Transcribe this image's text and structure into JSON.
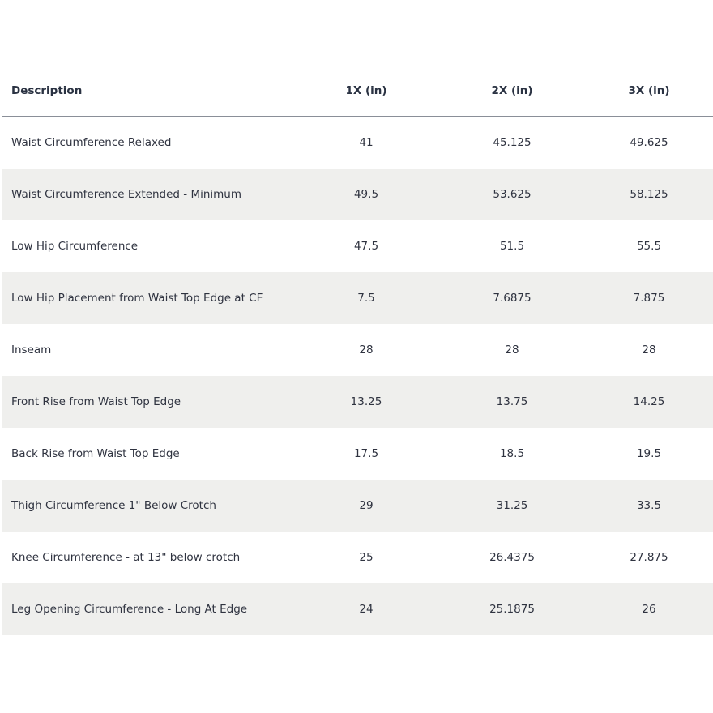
{
  "table": {
    "header": [
      "Description",
      "1X (in)",
      "2X (in)",
      "3X (in)"
    ],
    "rows": [
      [
        "Waist Circumference Relaxed",
        "41",
        "45.125",
        "49.625"
      ],
      [
        "Waist Circumference Extended - Minimum",
        "49.5",
        "53.625",
        "58.125"
      ],
      [
        "Low Hip Circumference",
        "47.5",
        "51.5",
        "55.5"
      ],
      [
        "Low Hip Placement from Waist Top Edge at CF",
        "7.5",
        "7.6875",
        "7.875"
      ],
      [
        "Inseam",
        "28",
        "28",
        "28"
      ],
      [
        "Front Rise from Waist Top Edge",
        "13.25",
        "13.75",
        "14.25"
      ],
      [
        "Back Rise from Waist Top Edge",
        "17.5",
        "18.5",
        "19.5"
      ],
      [
        "Thigh Circumference 1\" Below Crotch",
        "29",
        "31.25",
        "33.5"
      ],
      [
        "Knee Circumference - at 13\" below crotch",
        "25",
        "26.4375",
        "27.875"
      ],
      [
        "Leg Opening Circumference - Long At Edge",
        "24",
        "25.1875",
        "26"
      ]
    ]
  }
}
